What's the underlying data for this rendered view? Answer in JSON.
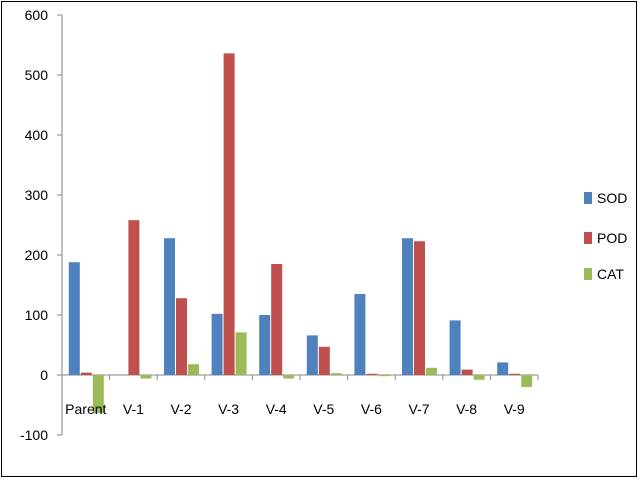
{
  "chart_data": {
    "type": "bar",
    "categories": [
      "Parent",
      "V-1",
      "V-2",
      "V-3",
      "V-4",
      "V-5",
      "V-6",
      "V-7",
      "V-8",
      "V-9"
    ],
    "series": [
      {
        "name": "SOD",
        "color": "#4f81bd",
        "values": [
          188,
          0,
          228,
          102,
          100,
          66,
          135,
          228,
          91,
          21
        ]
      },
      {
        "name": "POD",
        "color": "#c0504d",
        "values": [
          4,
          258,
          128,
          536,
          185,
          47,
          2,
          223,
          9,
          2
        ]
      },
      {
        "name": "CAT",
        "color": "#9bbb59",
        "values": [
          -63,
          -6,
          18,
          71,
          -6,
          3,
          -2,
          12,
          -8,
          -20
        ]
      }
    ],
    "y_ticks": [
      "600",
      "500",
      "400",
      "300",
      "200",
      "100",
      "0",
      "-100"
    ],
    "ylim": [
      -100,
      600
    ],
    "grid": false,
    "legend_position": "right"
  }
}
